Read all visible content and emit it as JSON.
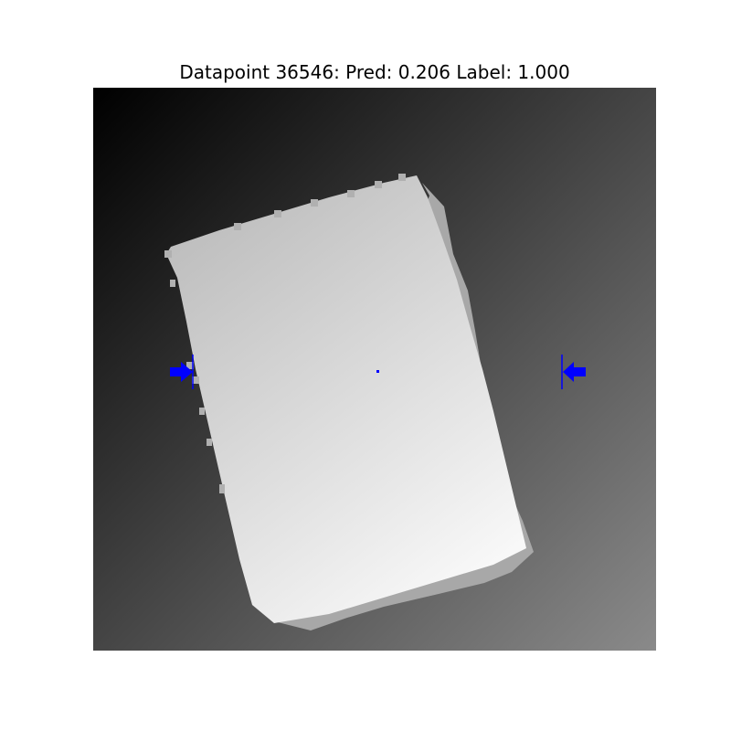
{
  "figure": {
    "title": "Datapoint 36546: Pred: 0.206 Label: 1.000",
    "background_gradient": [
      "#000000",
      "#8a8a8a"
    ],
    "object_gradient": [
      "#bcbcbc",
      "#fbfbfb"
    ],
    "marker_color": "#0000ff",
    "left_marker_icon": "arrow-right-icon",
    "right_marker_icon": "arrow-left-icon",
    "center_marker_icon": "dot-icon"
  }
}
